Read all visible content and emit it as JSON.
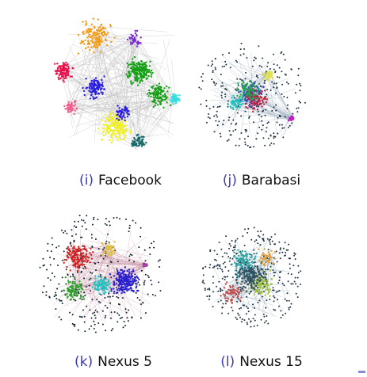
{
  "panels": [
    {
      "tag": "(i)",
      "label": "Facebook"
    },
    {
      "tag": "(j)",
      "label": "Barabasi"
    },
    {
      "tag": "(k)",
      "label": "Nexus 5"
    },
    {
      "tag": "(l)",
      "label": "Nexus 15"
    }
  ]
}
